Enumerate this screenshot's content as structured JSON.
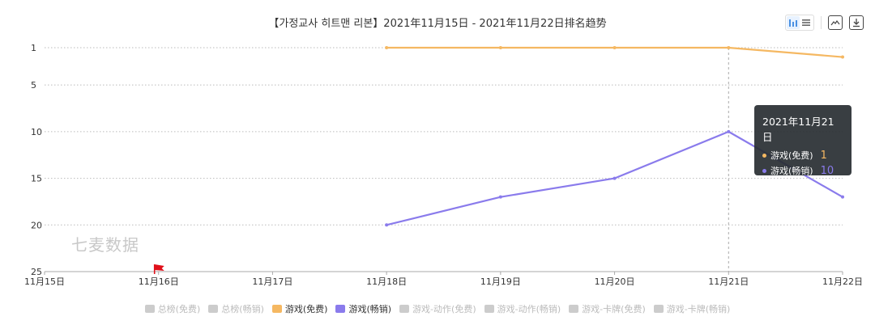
{
  "chart_data": {
    "type": "line",
    "title": "【가정교사 히트맨 리본】2021年11月15日 - 2021年11月22日排名趋势",
    "categories": [
      "11月15日",
      "11月16日",
      "11月17日",
      "11月18日",
      "11月19日",
      "11月20日",
      "11月21日",
      "11月22日"
    ],
    "y_axis": {
      "ticks": [
        1,
        5,
        10,
        15,
        20,
        25
      ],
      "inverse": true,
      "ylim": [
        1,
        25
      ]
    },
    "series": [
      {
        "name": "游戏(免费)",
        "color": "#f5b862",
        "values": [
          null,
          null,
          null,
          1,
          1,
          1,
          1,
          2
        ]
      },
      {
        "name": "游戏(畅销)",
        "color": "#8a7bec",
        "values": [
          null,
          null,
          null,
          20,
          17,
          15,
          10,
          17
        ]
      }
    ],
    "legend": [
      {
        "label": "总榜(免费)",
        "color": "#cccccc",
        "active": false
      },
      {
        "label": "总榜(畅销)",
        "color": "#cccccc",
        "active": false
      },
      {
        "label": "游戏(免费)",
        "color": "#f5b862",
        "active": true
      },
      {
        "label": "游戏(畅销)",
        "color": "#8a7bec",
        "active": true
      },
      {
        "label": "游戏-动作(免费)",
        "color": "#cccccc",
        "active": false
      },
      {
        "label": "游戏-动作(畅销)",
        "color": "#cccccc",
        "active": false
      },
      {
        "label": "游戏-卡牌(免费)",
        "color": "#cccccc",
        "active": false
      },
      {
        "label": "游戏-卡牌(畅销)",
        "color": "#cccccc",
        "active": false
      }
    ],
    "legend_position": "bottom",
    "grid": "horizontal-dotted",
    "marker": {
      "category": "11月16日",
      "type": "flag",
      "color": "#e0101a"
    },
    "tooltip": {
      "title": "2021年11月21日",
      "rows": [
        {
          "label": "游戏(免费)",
          "value": "1",
          "color": "#f5b862"
        },
        {
          "label": "游戏(畅销)",
          "value": "10",
          "color": "#8a7bec"
        }
      ]
    },
    "hover_category": "11月21日"
  },
  "watermark": "七麦数据",
  "toolbar": {
    "icons": [
      "bar-chart-icon",
      "list-icon",
      "image-export-icon",
      "download-icon"
    ]
  }
}
